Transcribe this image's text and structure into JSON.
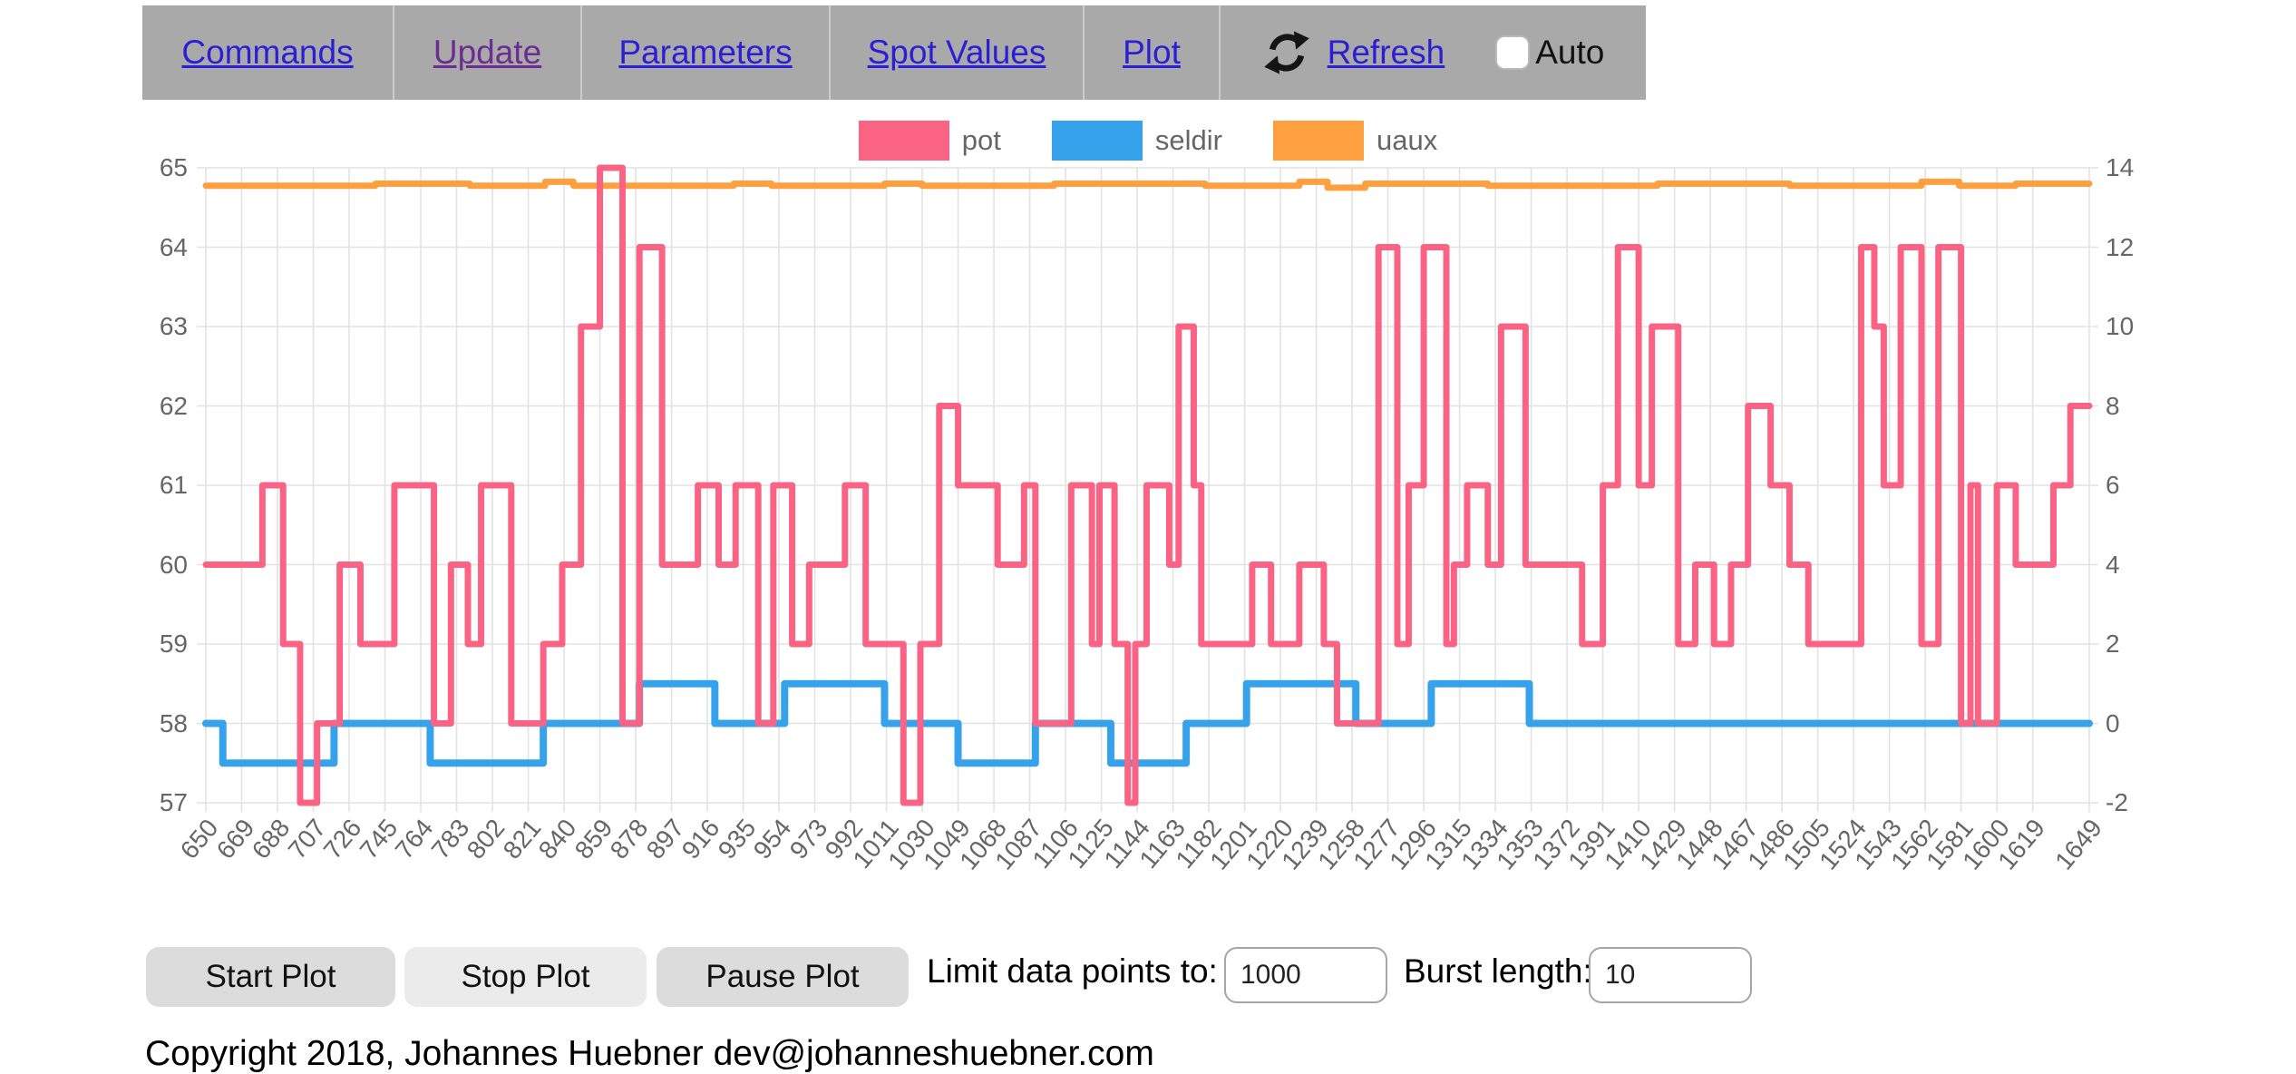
{
  "nav": {
    "items": [
      {
        "label": "Commands",
        "visited": false
      },
      {
        "label": "Update",
        "visited": true
      },
      {
        "label": "Parameters",
        "visited": false
      },
      {
        "label": "Spot Values",
        "visited": false
      },
      {
        "label": "Plot",
        "visited": false
      }
    ],
    "refresh_label": "Refresh",
    "auto_label": "Auto",
    "auto_checked": false
  },
  "legend": {
    "items": [
      {
        "label": "pot",
        "color": "#fa6384"
      },
      {
        "label": "seldir",
        "color": "#36a2eb"
      },
      {
        "label": "uaux",
        "color": "#ffa040"
      }
    ]
  },
  "chart_data": {
    "type": "line",
    "stepped": true,
    "grid": true,
    "legend_position": "top",
    "x_range": [
      650,
      1649
    ],
    "x_tick_labels": [
      650,
      669,
      688,
      707,
      726,
      745,
      764,
      783,
      802,
      821,
      840,
      859,
      878,
      897,
      916,
      935,
      954,
      973,
      992,
      1011,
      1030,
      1049,
      1068,
      1087,
      1106,
      1125,
      1144,
      1163,
      1182,
      1201,
      1220,
      1239,
      1258,
      1277,
      1296,
      1315,
      1334,
      1353,
      1372,
      1391,
      1410,
      1429,
      1448,
      1467,
      1486,
      1505,
      1524,
      1543,
      1562,
      1581,
      1600,
      1619,
      1649
    ],
    "left_axis": {
      "min": 57,
      "max": 65,
      "ticks": [
        65,
        64,
        63,
        62,
        61,
        60,
        59,
        58,
        57
      ]
    },
    "right_axis": {
      "min": -2,
      "max": 14,
      "ticks": [
        14,
        12,
        10,
        8,
        6,
        4,
        2,
        0,
        -2
      ]
    },
    "series": [
      {
        "name": "pot",
        "axis": "left",
        "color": "#fa6384",
        "stroke_width": 7,
        "steps": [
          [
            650,
            60
          ],
          [
            680,
            61
          ],
          [
            691,
            59
          ],
          [
            700,
            57
          ],
          [
            709,
            58
          ],
          [
            721,
            60
          ],
          [
            732,
            59
          ],
          [
            750,
            61
          ],
          [
            771,
            58
          ],
          [
            780,
            60
          ],
          [
            789,
            59
          ],
          [
            796,
            61
          ],
          [
            812,
            58
          ],
          [
            829,
            59
          ],
          [
            839,
            60
          ],
          [
            849,
            63
          ],
          [
            859,
            65
          ],
          [
            871,
            58
          ],
          [
            880,
            64
          ],
          [
            892,
            60
          ],
          [
            911,
            61
          ],
          [
            922,
            60
          ],
          [
            931,
            61
          ],
          [
            943,
            58
          ],
          [
            951,
            61
          ],
          [
            961,
            59
          ],
          [
            970,
            60
          ],
          [
            989,
            61
          ],
          [
            1000,
            59
          ],
          [
            1020,
            57
          ],
          [
            1029,
            59
          ],
          [
            1039,
            62
          ],
          [
            1049,
            61
          ],
          [
            1070,
            60
          ],
          [
            1084,
            61
          ],
          [
            1090,
            58
          ],
          [
            1109,
            61
          ],
          [
            1120,
            59
          ],
          [
            1124,
            61
          ],
          [
            1132,
            59
          ],
          [
            1139,
            57
          ],
          [
            1143,
            59
          ],
          [
            1149,
            61
          ],
          [
            1161,
            60
          ],
          [
            1166,
            63
          ],
          [
            1174,
            61
          ],
          [
            1178,
            59
          ],
          [
            1205,
            60
          ],
          [
            1215,
            59
          ],
          [
            1230,
            60
          ],
          [
            1243,
            59
          ],
          [
            1250,
            58
          ],
          [
            1272,
            64
          ],
          [
            1282,
            59
          ],
          [
            1288,
            61
          ],
          [
            1296,
            64
          ],
          [
            1308,
            59
          ],
          [
            1312,
            60
          ],
          [
            1319,
            61
          ],
          [
            1330,
            60
          ],
          [
            1337,
            63
          ],
          [
            1350,
            60
          ],
          [
            1380,
            59
          ],
          [
            1391,
            61
          ],
          [
            1399,
            64
          ],
          [
            1410,
            61
          ],
          [
            1417,
            63
          ],
          [
            1431,
            59
          ],
          [
            1440,
            60
          ],
          [
            1450,
            59
          ],
          [
            1459,
            60
          ],
          [
            1468,
            62
          ],
          [
            1480,
            61
          ],
          [
            1490,
            60
          ],
          [
            1500,
            59
          ],
          [
            1528,
            64
          ],
          [
            1535,
            63
          ],
          [
            1540,
            61
          ],
          [
            1549,
            64
          ],
          [
            1560,
            59
          ],
          [
            1569,
            64
          ],
          [
            1581,
            58
          ],
          [
            1586,
            61
          ],
          [
            1590,
            58
          ],
          [
            1600,
            61
          ],
          [
            1610,
            60
          ],
          [
            1630,
            61
          ],
          [
            1639,
            62
          ]
        ]
      },
      {
        "name": "seldir",
        "axis": "right",
        "color": "#36a2eb",
        "stroke_width": 8,
        "steps": [
          [
            650,
            0
          ],
          [
            659,
            -1
          ],
          [
            718,
            0
          ],
          [
            769,
            -1
          ],
          [
            829,
            0
          ],
          [
            880,
            1
          ],
          [
            920,
            0
          ],
          [
            957,
            1
          ],
          [
            1010,
            0
          ],
          [
            1049,
            -1
          ],
          [
            1090,
            0
          ],
          [
            1130,
            -1
          ],
          [
            1170,
            0
          ],
          [
            1202,
            1
          ],
          [
            1260,
            0
          ],
          [
            1300,
            1
          ],
          [
            1352,
            0
          ]
        ]
      },
      {
        "name": "uaux",
        "axis": "right",
        "color": "#ffa040",
        "stroke_width": 7,
        "steps": [
          [
            650,
            13.55
          ],
          [
            740,
            13.6
          ],
          [
            790,
            13.55
          ],
          [
            830,
            13.65
          ],
          [
            845,
            13.55
          ],
          [
            930,
            13.6
          ],
          [
            950,
            13.55
          ],
          [
            1010,
            13.6
          ],
          [
            1030,
            13.55
          ],
          [
            1100,
            13.6
          ],
          [
            1180,
            13.55
          ],
          [
            1230,
            13.65
          ],
          [
            1245,
            13.5
          ],
          [
            1265,
            13.6
          ],
          [
            1330,
            13.55
          ],
          [
            1420,
            13.6
          ],
          [
            1490,
            13.55
          ],
          [
            1560,
            13.65
          ],
          [
            1580,
            13.55
          ],
          [
            1610,
            13.6
          ]
        ]
      }
    ]
  },
  "controls": {
    "start_label": "Start Plot",
    "stop_label": "Stop Plot",
    "pause_label": "Pause Plot",
    "limit_label": "Limit data points to:",
    "limit_value": "1000",
    "burst_label": "Burst length:",
    "burst_value": "10"
  },
  "footer": {
    "copyright": "Copyright 2018, Johannes Huebner dev@johanneshuebner.com"
  }
}
